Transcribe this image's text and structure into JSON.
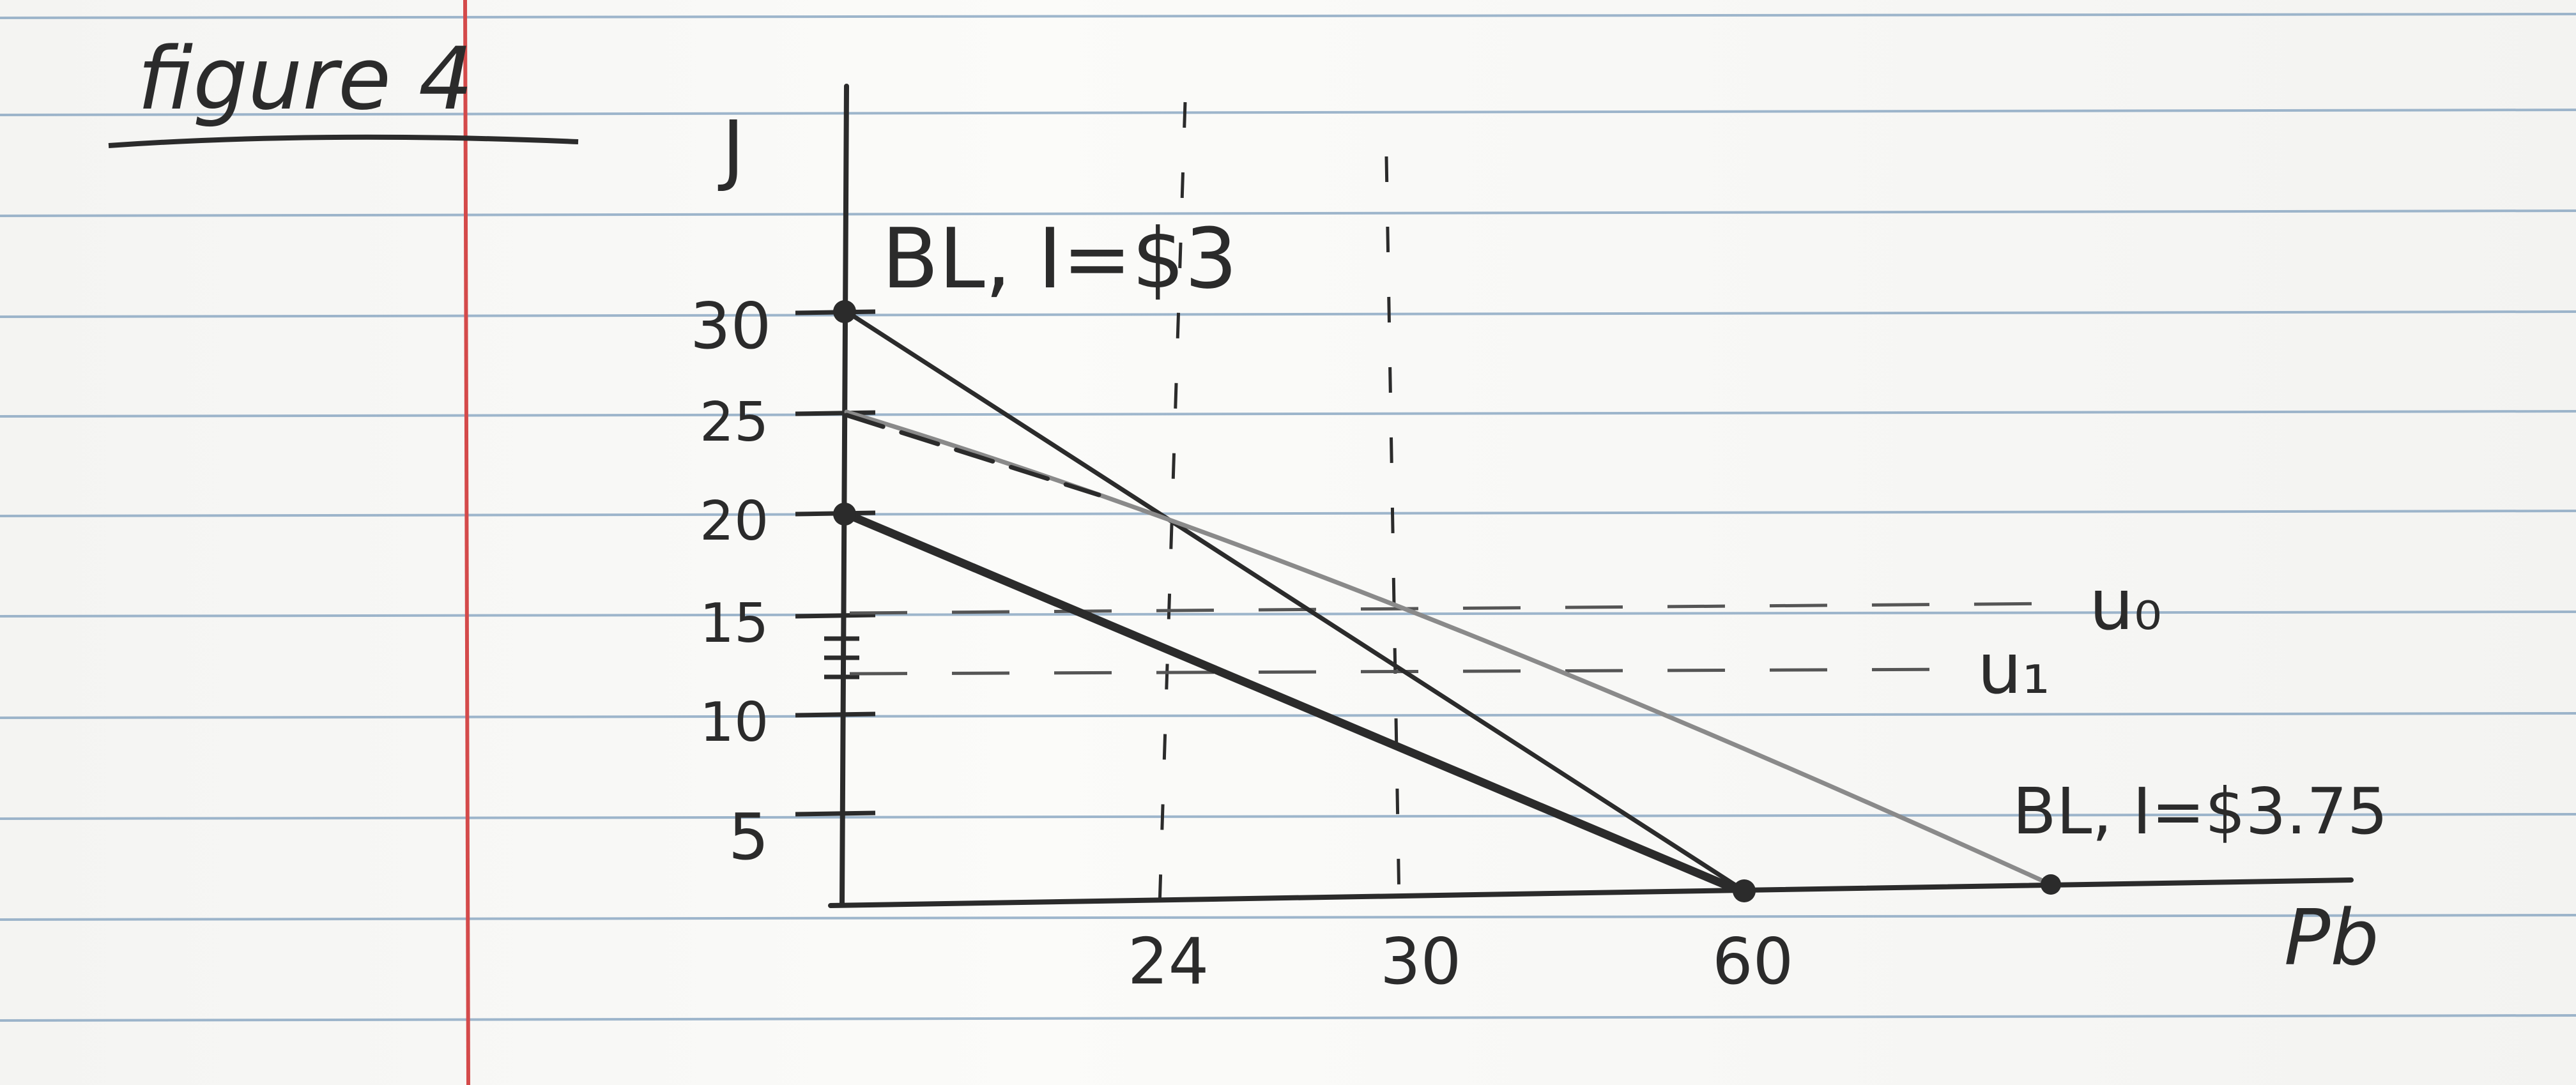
{
  "title": "figure 4",
  "axes": {
    "y_label": "J",
    "x_label": "Pb",
    "y_ticks": [
      "30",
      "25",
      "20",
      "15",
      "10",
      "5"
    ],
    "x_ticks": [
      "24",
      "30",
      "60"
    ]
  },
  "labels": {
    "budget_line_1": "BL, I=$3",
    "budget_line_2": "BL, I=$3.75",
    "indifference_0": "u₀",
    "indifference_1": "u₁"
  },
  "colors": {
    "ink": "#2b2b2b",
    "pencil": "#8a8a8a",
    "ruled_line": "#7f9fbd",
    "margin_line": "#d44a4a",
    "paper": "#f7f7f5"
  }
}
